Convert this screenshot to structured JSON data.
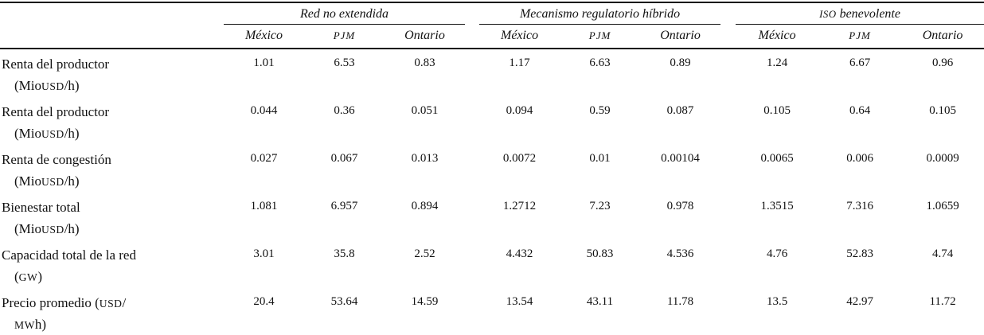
{
  "table": {
    "groups": [
      {
        "sc": "",
        "text": "Red no extendida"
      },
      {
        "sc": "",
        "text": "Mecanismo regulatorio híbrido"
      },
      {
        "sc": "ISO",
        "text": " benevolente"
      }
    ],
    "columns": [
      "México",
      "PJM",
      "Ontario"
    ],
    "rows": [
      {
        "line1": {
          "pre": "Renta del productor",
          "sc": "",
          "post": ""
        },
        "line2": {
          "pre": "(Mio",
          "sc": "USD",
          "post": "/h)"
        },
        "values": [
          "1.01",
          "6.53",
          "0.83",
          "1.17",
          "6.63",
          "0.89",
          "1.24",
          "6.67",
          "0.96"
        ]
      },
      {
        "line1": {
          "pre": "Renta del productor",
          "sc": "",
          "post": ""
        },
        "line2": {
          "pre": "(Mio",
          "sc": "USD",
          "post": "/h)"
        },
        "values": [
          "0.044",
          "0.36",
          "0.051",
          "0.094",
          "0.59",
          "0.087",
          "0.105",
          "0.64",
          "0.105"
        ]
      },
      {
        "line1": {
          "pre": "Renta de congestión",
          "sc": "",
          "post": ""
        },
        "line2": {
          "pre": "(Mio",
          "sc": "USD",
          "post": "/h)"
        },
        "values": [
          "0.027",
          "0.067",
          "0.013",
          "0.0072",
          "0.01",
          "0.00104",
          "0.0065",
          "0.006",
          "0.0009"
        ]
      },
      {
        "line1": {
          "pre": "Bienestar total",
          "sc": "",
          "post": ""
        },
        "line2": {
          "pre": "(Mio",
          "sc": "USD",
          "post": "/h)"
        },
        "values": [
          "1.081",
          "6.957",
          "0.894",
          "1.2712",
          "7.23",
          "0.978",
          "1.3515",
          "7.316",
          "1.0659"
        ]
      },
      {
        "line1": {
          "pre": "Capacidad total de la red",
          "sc": "",
          "post": ""
        },
        "line2": {
          "pre": "(",
          "sc": "GW",
          "post": ")"
        },
        "values": [
          "3.01",
          "35.8",
          "2.52",
          "4.432",
          "50.83",
          "4.536",
          "4.76",
          "52.83",
          "4.74"
        ]
      },
      {
        "line1": {
          "pre": "Precio promedio (",
          "sc": "USD",
          "post": "/"
        },
        "line2": {
          "pre": "",
          "sc": "MW",
          "post": "h)"
        },
        "values": [
          "20.4",
          "53.64",
          "14.59",
          "13.54",
          "43.11",
          "11.78",
          "13.5",
          "42.97",
          "11.72"
        ]
      }
    ],
    "colors": {
      "text": "#111111",
      "rule": "#111111",
      "background": "#ffffff"
    }
  }
}
